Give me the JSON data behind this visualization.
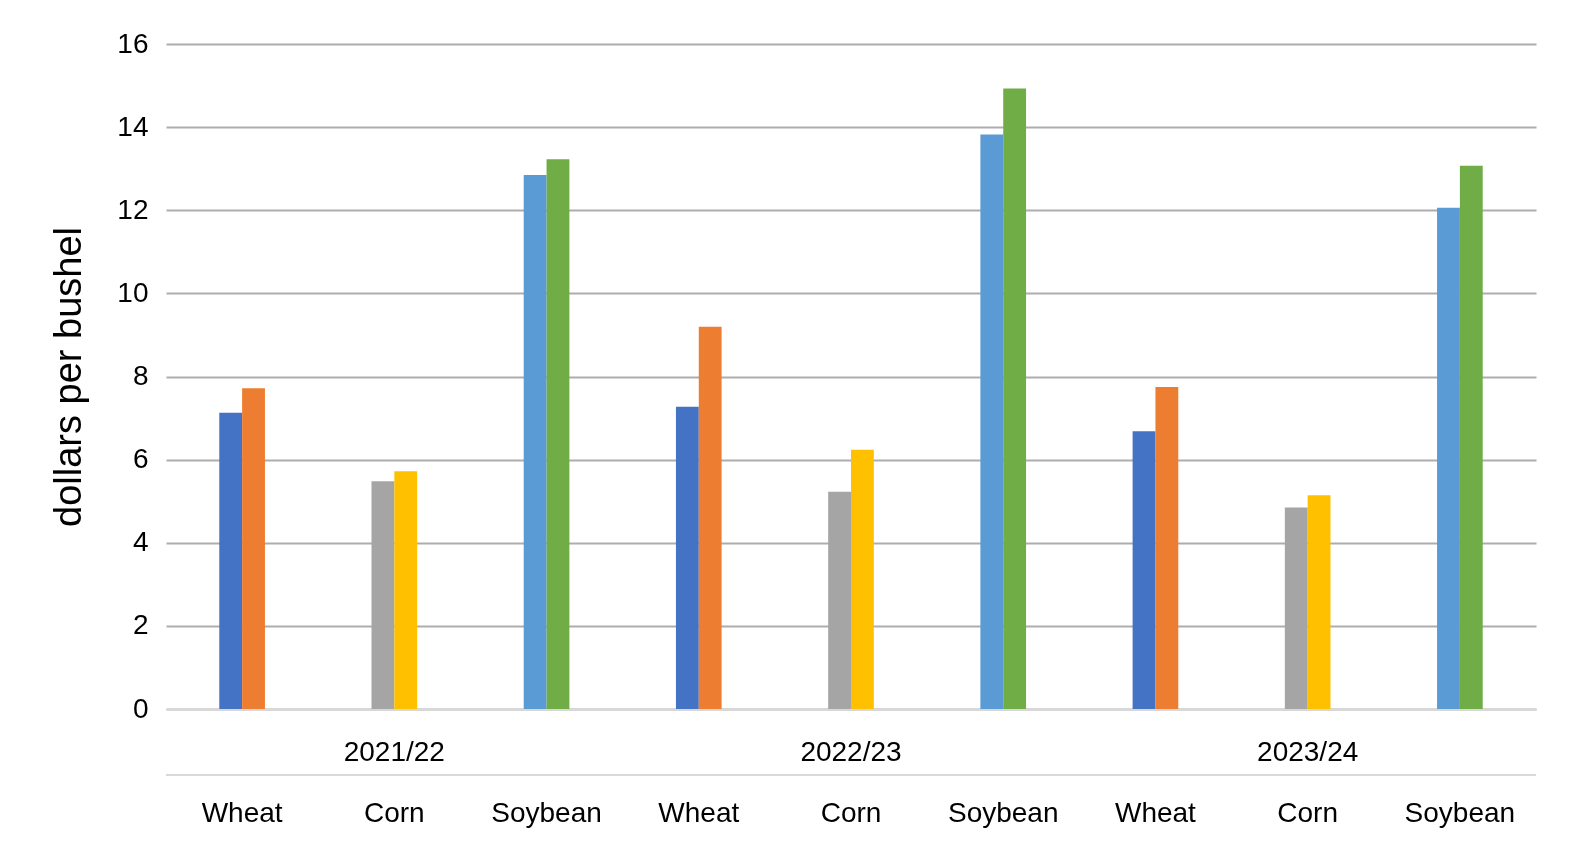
{
  "chart_data": {
    "type": "bar",
    "ylabel": "dollars per bushel",
    "categories": [
      "Wheat",
      "Corn",
      "Soybean",
      "Wheat",
      "Corn",
      "Soybean",
      "Wheat",
      "Corn",
      "Soybean"
    ],
    "series": [
      {
        "color": "#4472c4",
        "values": [
          7.13,
          null,
          null,
          7.27,
          null,
          null,
          6.68,
          null,
          null
        ]
      },
      {
        "color": "#ed7d31",
        "values": [
          7.72,
          null,
          null,
          9.2,
          null,
          null,
          7.75,
          null,
          null
        ]
      },
      {
        "color": "#a5a5a5",
        "values": [
          null,
          5.48,
          null,
          null,
          5.23,
          null,
          null,
          4.85,
          null
        ]
      },
      {
        "color": "#ffc000",
        "values": [
          null,
          5.72,
          null,
          null,
          6.24,
          null,
          null,
          5.14,
          null
        ]
      },
      {
        "color": "#5b9bd5",
        "values": [
          null,
          null,
          12.85,
          null,
          null,
          13.82,
          null,
          null,
          12.06
        ]
      },
      {
        "color": "#70ad47",
        "values": [
          null,
          null,
          13.23,
          null,
          null,
          14.93,
          null,
          null,
          13.07
        ]
      }
    ],
    "annotations": [
      "2021/22",
      "2022/23",
      "2023/24"
    ],
    "ylim": [
      0,
      16
    ],
    "yticks": [
      0,
      2,
      4,
      6,
      8,
      10,
      12,
      14,
      16
    ],
    "grid": "y"
  }
}
